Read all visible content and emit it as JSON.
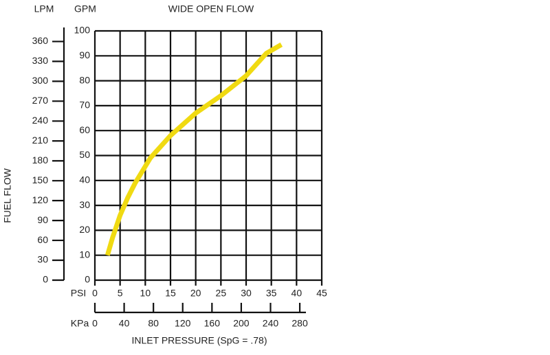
{
  "chart_data": {
    "type": "line",
    "title": "WIDE OPEN FLOW",
    "y_label": "FUEL FLOW",
    "y_unit": "GPM",
    "y2_unit": "LPM",
    "x_unit": "PSI",
    "x2_unit": "KPa",
    "x_label": "INLET PRESSURE (SpG = .78)",
    "x": [
      2.5,
      3.5,
      5,
      6.5,
      8,
      11,
      15,
      20,
      25,
      30,
      34,
      37
    ],
    "series": [
      {
        "color": "#f0da12",
        "values": [
          10,
          17,
          26,
          33,
          39,
          49,
          58,
          67,
          74,
          82,
          91,
          94.5
        ]
      }
    ],
    "xlim": [
      0,
      45
    ],
    "xticks": [
      0,
      5,
      10,
      15,
      20,
      25,
      30,
      35,
      40,
      45
    ],
    "ylim": [
      0,
      100
    ],
    "yticks": [
      0,
      10,
      20,
      30,
      40,
      50,
      60,
      70,
      80,
      90,
      100
    ],
    "y2lim": [
      0,
      376
    ],
    "y2ticks": [
      0,
      30,
      60,
      90,
      120,
      150,
      180,
      210,
      240,
      270,
      300,
      330,
      360
    ],
    "x2lim": [
      0,
      310
    ],
    "x2ticks": [
      0,
      40,
      80,
      120,
      160,
      200,
      240,
      280
    ],
    "grid": true
  }
}
